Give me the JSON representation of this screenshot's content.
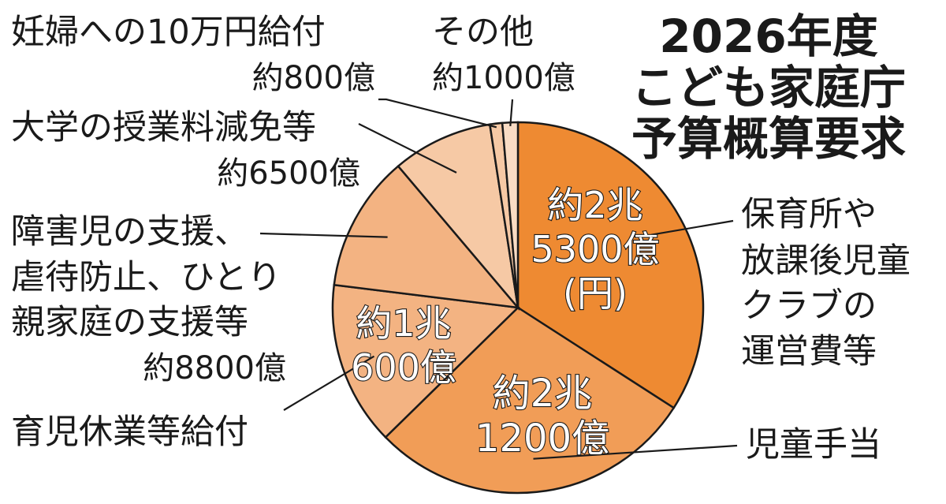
{
  "title_lines": [
    "2026年度",
    "こども家庭庁",
    "予算概算要求"
  ],
  "chart_data": {
    "type": "pie",
    "unit": "億円",
    "slices": [
      {
        "name_lines": [
          "保育所や",
          "放課後児童",
          "クラブの",
          "運営費等"
        ],
        "value": 25300,
        "value_lines": [
          "約2兆",
          "5300億",
          "(円)"
        ],
        "color": "#ee8a32"
      },
      {
        "name_lines": [
          "児童手当"
        ],
        "value": 21200,
        "value_lines": [
          "約2兆",
          "1200億"
        ],
        "color": "#f19d57"
      },
      {
        "name_lines": [
          "育児休業等給付"
        ],
        "value": 10600,
        "value_lines": [
          "約1兆",
          "600億"
        ],
        "color": "#f3b382"
      },
      {
        "name_lines": [
          "障害児の支援、",
          "虐待防止、ひとり",
          "親家庭の支援等"
        ],
        "value": 8800,
        "value_lines": [
          "約8800億"
        ],
        "color": "#f3b382"
      },
      {
        "name_lines": [
          "大学の授業料減免等"
        ],
        "value": 6500,
        "value_lines": [
          "約6500億"
        ],
        "color": "#f6c9a5"
      },
      {
        "name_lines": [
          "妊婦への10万円給付"
        ],
        "value": 800,
        "value_lines": [
          "約800億"
        ],
        "color": "#f6c9a5"
      },
      {
        "name_lines": [
          "その他"
        ],
        "value": 1000,
        "value_lines": [
          "約1000億"
        ],
        "color": "#f9dcc4"
      }
    ]
  }
}
